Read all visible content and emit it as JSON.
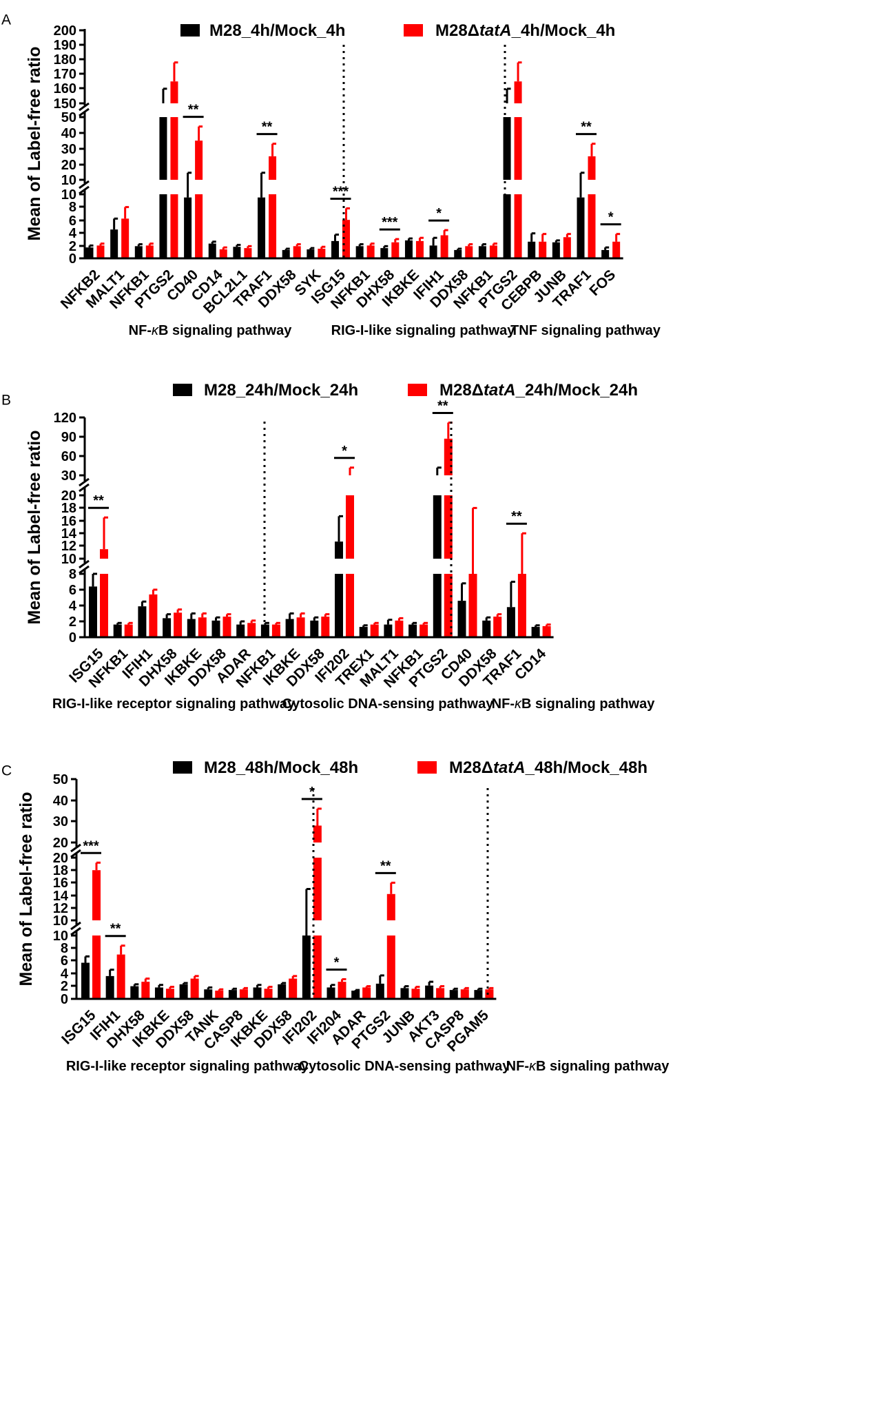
{
  "colors": {
    "series1": "#000000",
    "series2": "#ff0000"
  },
  "chart_data": [
    {
      "panel_label": "A",
      "type": "bar",
      "ylabel": "Mean of Label-free ratio",
      "series_names": [
        "M28_4h/Mock_4h",
        "M28ΔtatA_4h/Mock_4h"
      ],
      "ytick_labels": [
        "200",
        "190",
        "180",
        "170",
        "160",
        "150",
        "50",
        "40",
        "30",
        "20",
        "10",
        "10",
        "8",
        "6",
        "4",
        "2",
        "0"
      ],
      "groups": [
        {
          "label": "NF-κB signaling pathway",
          "items": [
            {
              "c": "NFKB2",
              "v1": 1.7,
              "e1": 0.3,
              "v2": 2.0,
              "e2": 0.3
            },
            {
              "c": "MALT1",
              "v1": 4.5,
              "e1": 1.7,
              "v2": 6.2,
              "e2": 1.8
            },
            {
              "c": "NFKB1",
              "v1": 1.9,
              "e1": 0.3,
              "v2": 2.0,
              "e2": 0.3
            },
            {
              "c": "PTGS2",
              "v1": 150,
              "e1": 10,
              "v2": 165,
              "e2": 13
            },
            {
              "c": "CD40",
              "v1": 9.5,
              "e1": 5,
              "v2": 35,
              "e2": 9,
              "sig": "**"
            },
            {
              "c": "CD14",
              "v1": 2.3,
              "e1": 0.3,
              "v2": 1.4,
              "e2": 0.3
            },
            {
              "c": "BCL2L1",
              "v1": 1.8,
              "e1": 0.3,
              "v2": 1.6,
              "e2": 0.3
            },
            {
              "c": "TRAF1",
              "v1": 9.5,
              "e1": 5,
              "v2": 25,
              "e2": 8,
              "sig": "**"
            },
            {
              "c": "DDX58",
              "v1": 1.3,
              "e1": 0.2,
              "v2": 1.9,
              "e2": 0.3
            },
            {
              "c": "SYK",
              "v1": 1.4,
              "e1": 0.2,
              "v2": 1.5,
              "e2": 0.3
            }
          ]
        },
        {
          "label": "RIG-I-like signaling pathway",
          "items": [
            {
              "c": "ISG15",
              "v1": 2.7,
              "e1": 1.0,
              "v2": 6.0,
              "e2": 1.8,
              "sig": "***"
            },
            {
              "c": "NFKB1",
              "v1": 1.9,
              "e1": 0.3,
              "v2": 2.0,
              "e2": 0.3
            },
            {
              "c": "DHX58",
              "v1": 1.6,
              "e1": 0.3,
              "v2": 2.5,
              "e2": 0.5,
              "sig": "***"
            },
            {
              "c": "IKBKE",
              "v1": 2.8,
              "e1": 0.3,
              "v2": 2.7,
              "e2": 0.5
            },
            {
              "c": "IFIH1",
              "v1": 2.0,
              "e1": 1.2,
              "v2": 3.6,
              "e2": 0.8,
              "sig": "*"
            },
            {
              "c": "DDX58",
              "v1": 1.3,
              "e1": 0.2,
              "v2": 1.9,
              "e2": 0.3
            }
          ]
        },
        {
          "label": "TNF signaling pathway",
          "items": [
            {
              "c": "NFKB1",
              "v1": 1.9,
              "e1": 0.3,
              "v2": 2.0,
              "e2": 0.3
            },
            {
              "c": "PTGS2",
              "v1": 150,
              "e1": 10,
              "v2": 165,
              "e2": 13
            },
            {
              "c": "CEBPB",
              "v1": 2.6,
              "e1": 1.3,
              "v2": 2.6,
              "e2": 1.2
            },
            {
              "c": "JUNB",
              "v1": 2.5,
              "e1": 0.3,
              "v2": 3.3,
              "e2": 0.5
            },
            {
              "c": "TRAF1",
              "v1": 9.5,
              "e1": 5,
              "v2": 25,
              "e2": 8,
              "sig": "**"
            },
            {
              "c": "FOS",
              "v1": 1.3,
              "e1": 0.4,
              "v2": 2.6,
              "e2": 1.2,
              "sig": "*"
            }
          ]
        }
      ]
    },
    {
      "panel_label": "B",
      "type": "bar",
      "ylabel": "Mean of Label-free ratio",
      "series_names": [
        "M28_24h/Mock_24h",
        "M28ΔtatA_24h/Mock_24h"
      ],
      "ytick_labels": [
        "120",
        "90",
        "60",
        "30",
        "20",
        "18",
        "16",
        "14",
        "12",
        "10",
        "8",
        "6",
        "4",
        "2",
        "0"
      ],
      "groups": [
        {
          "label": "RIG-I-like receptor signaling pathway",
          "items": [
            {
              "c": "ISG15",
              "v1": 6.4,
              "e1": 1.8,
              "v2": 11.5,
              "e2": 5,
              "sig": "**"
            },
            {
              "c": "NFKB1",
              "v1": 1.6,
              "e1": 0.2,
              "v2": 1.6,
              "e2": 0.2
            },
            {
              "c": "IFIH1",
              "v1": 3.9,
              "e1": 0.6,
              "v2": 5.4,
              "e2": 0.6
            },
            {
              "c": "DHX58",
              "v1": 2.4,
              "e1": 0.5,
              "v2": 3.1,
              "e2": 0.4
            },
            {
              "c": "IKBKE",
              "v1": 2.3,
              "e1": 0.7,
              "v2": 2.5,
              "e2": 0.5
            },
            {
              "c": "DDX58",
              "v1": 2.1,
              "e1": 0.4,
              "v2": 2.6,
              "e2": 0.3
            }
          ]
        },
        {
          "label": "Cytosolic DNA-sensing pathway",
          "items": [
            {
              "c": "ADAR",
              "v1": 1.6,
              "e1": 0.4,
              "v2": 1.8,
              "e2": 0.3
            },
            {
              "c": "NFKB1",
              "v1": 1.6,
              "e1": 0.2,
              "v2": 1.6,
              "e2": 0.2
            },
            {
              "c": "IKBKE",
              "v1": 2.3,
              "e1": 0.7,
              "v2": 2.5,
              "e2": 0.5
            },
            {
              "c": "DDX58",
              "v1": 2.1,
              "e1": 0.4,
              "v2": 2.6,
              "e2": 0.3
            },
            {
              "c": "IFI202",
              "v1": 12.7,
              "e1": 4,
              "v2": 30,
              "e2": 12,
              "sig": "*"
            },
            {
              "c": "TREX1",
              "v1": 1.3,
              "e1": 0.2,
              "v2": 1.6,
              "e2": 0.2
            }
          ]
        },
        {
          "label": "NF-κB signaling pathway",
          "items": [
            {
              "c": "MALT1",
              "v1": 1.6,
              "e1": 0.6,
              "v2": 2.1,
              "e2": 0.3
            },
            {
              "c": "NFKB1",
              "v1": 1.6,
              "e1": 0.2,
              "v2": 1.6,
              "e2": 0.2
            },
            {
              "c": "PTGS2",
              "v1": 30,
              "e1": 12,
              "v2": 87,
              "e2": 25,
              "sig": "**"
            },
            {
              "c": "CD40",
              "v1": 4.6,
              "e1": 2.2,
              "v2": 8,
              "e2": 10
            },
            {
              "c": "DDX58",
              "v1": 2.1,
              "e1": 0.4,
              "v2": 2.6,
              "e2": 0.3
            },
            {
              "c": "TRAF1",
              "v1": 3.8,
              "e1": 3.2,
              "v2": 8,
              "e2": 6,
              "sig": "**"
            },
            {
              "c": "CD14",
              "v1": 1.3,
              "e1": 0.2,
              "v2": 1.4,
              "e2": 0.2
            }
          ]
        }
      ]
    },
    {
      "panel_label": "C",
      "type": "bar",
      "ylabel": "Mean of Label-free ratio",
      "series_names": [
        "M28_48h/Mock_48h",
        "M28ΔtatA_48h/Mock_48h"
      ],
      "ytick_labels": [
        "50",
        "40",
        "30",
        "20",
        "20",
        "18",
        "16",
        "14",
        "12",
        "10",
        "10",
        "8",
        "6",
        "4",
        "2",
        "0"
      ],
      "groups": [
        {
          "label": "RIG-I-like receptor signaling pathway",
          "items": [
            {
              "c": "ISG15",
              "v1": 5.7,
              "e1": 1.0,
              "v2": 18.0,
              "e2": 1.2,
              "sig": "***"
            },
            {
              "c": "IFIH1",
              "v1": 3.6,
              "e1": 1.0,
              "v2": 7.0,
              "e2": 1.4,
              "sig": "**"
            },
            {
              "c": "DHX58",
              "v1": 2.0,
              "e1": 0.3,
              "v2": 2.7,
              "e2": 0.5
            },
            {
              "c": "IKBKE",
              "v1": 1.8,
              "e1": 0.4,
              "v2": 1.6,
              "e2": 0.3
            },
            {
              "c": "DDX58",
              "v1": 2.3,
              "e1": 0.2,
              "v2": 3.2,
              "e2": 0.4
            },
            {
              "c": "TANK",
              "v1": 1.5,
              "e1": 0.3,
              "v2": 1.3,
              "e2": 0.2
            },
            {
              "c": "CASP8",
              "v1": 1.4,
              "e1": 0.2,
              "v2": 1.5,
              "e2": 0.2
            }
          ]
        },
        {
          "label": "Cytosolic DNA-sensing pathway",
          "items": [
            {
              "c": "IKBKE",
              "v1": 1.8,
              "e1": 0.4,
              "v2": 1.6,
              "e2": 0.3
            },
            {
              "c": "DDX58",
              "v1": 2.3,
              "e1": 0.2,
              "v2": 3.2,
              "e2": 0.4
            },
            {
              "c": "IFI202",
              "v1": 10,
              "e1": 5,
              "v2": 28,
              "e2": 8,
              "sig": "*"
            },
            {
              "c": "IFI204",
              "v1": 1.8,
              "e1": 0.4,
              "v2": 2.7,
              "e2": 0.4,
              "sig": "*"
            },
            {
              "c": "ADAR",
              "v1": 1.3,
              "e1": 0.1,
              "v2": 1.8,
              "e2": 0.2
            }
          ]
        },
        {
          "label": "NF-κB signaling pathway",
          "items": [
            {
              "c": "PTGS2",
              "v1": 2.4,
              "e1": 1.3,
              "v2": 14.2,
              "e2": 1.8,
              "sig": "**"
            },
            {
              "c": "JUNB",
              "v1": 1.7,
              "e1": 0.3,
              "v2": 1.6,
              "e2": 0.3
            },
            {
              "c": "AKT3",
              "v1": 2.1,
              "e1": 0.6,
              "v2": 1.7,
              "e2": 0.3
            },
            {
              "c": "CASP8",
              "v1": 1.4,
              "e1": 0.2,
              "v2": 1.5,
              "e2": 0.2
            },
            {
              "c": "PGAM5",
              "v1": 1.4,
              "e1": 0.2,
              "v2": 1.5,
              "e2": 0.2
            }
          ]
        }
      ]
    }
  ]
}
